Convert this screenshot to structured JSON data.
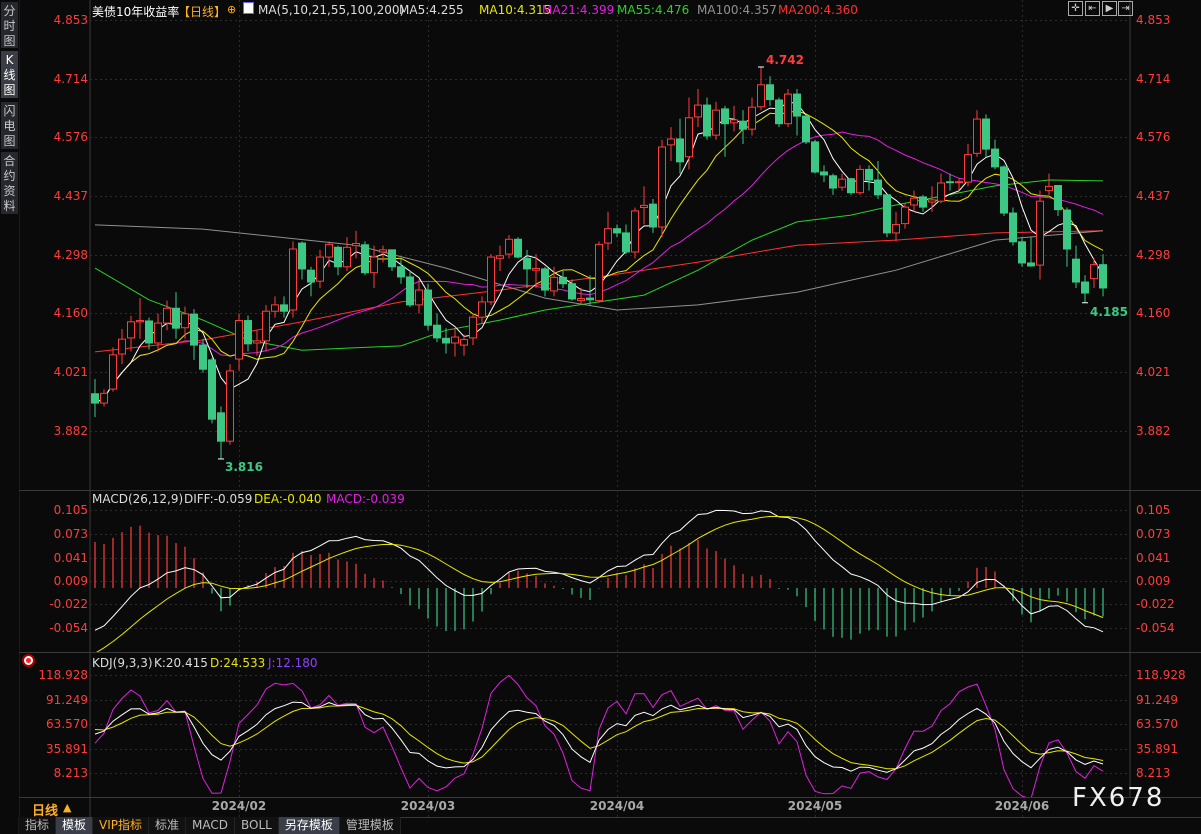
{
  "sidebar": {
    "items": [
      {
        "label": "分时图"
      },
      {
        "label": "K线图",
        "active": true
      },
      {
        "label": "闪电图"
      },
      {
        "label": "合约资料"
      }
    ]
  },
  "header": {
    "title": "美债10年收益率",
    "period": "【日线】",
    "ma_label": "MA(5,10,21,55,100,200)",
    "ma5": "MA5:4.255",
    "ma10": "MA10:4.315",
    "ma21": "MA21:4.399",
    "ma55": "MA55:4.476",
    "ma100": "MA100:4.357",
    "ma200": "MA200:4.360"
  },
  "toolbar": {
    "icons": [
      "crosshair-icon",
      "move-left-icon",
      "play-icon",
      "move-end-icon"
    ]
  },
  "colors": {
    "up": "#ff3c3c",
    "down": "#3cc884",
    "ma5": "#ffffff",
    "ma10": "#e6e600",
    "ma21": "#e020e0",
    "ma55": "#28d028",
    "ma100": "#909090",
    "ma200": "#ff3030",
    "axis_label": "#ff3c3c",
    "period_orange": "#ffb020"
  },
  "price_axis": {
    "ticks": [
      "4.853",
      "4.714",
      "4.576",
      "4.437",
      "4.298",
      "4.160",
      "4.021",
      "3.882"
    ]
  },
  "annotations": {
    "high": "4.742",
    "low": "3.816",
    "last_low": "4.185"
  },
  "macd": {
    "label": "MACD(26,12,9)",
    "diff": "DIFF:-0.059",
    "dea": "DEA:-0.040",
    "macd": "MACD:-0.039",
    "ticks": [
      "0.105",
      "0.073",
      "0.041",
      "0.009",
      "-0.022",
      "-0.054"
    ]
  },
  "kdj": {
    "label": "KDJ(9,3,3)",
    "k": "K:20.415",
    "d": "D:24.533",
    "j": "J:12.180",
    "ticks": [
      "118.928",
      "91.249",
      "63.570",
      "35.891",
      "8.213"
    ]
  },
  "x_axis": {
    "period": "日线",
    "arrow": "▲",
    "ticks": [
      {
        "label": "2024/02",
        "index": 16
      },
      {
        "label": "2024/03",
        "index": 37
      },
      {
        "label": "2024/04",
        "index": 58
      },
      {
        "label": "2024/05",
        "index": 80
      },
      {
        "label": "2024/06",
        "index": 103
      }
    ]
  },
  "bottom_tabs": [
    {
      "label": "指标"
    },
    {
      "label": "模板",
      "hl": true
    },
    {
      "label": "VIP指标",
      "vip": true
    },
    {
      "label": "标准"
    },
    {
      "label": "MACD"
    },
    {
      "label": "BOLL"
    },
    {
      "label": "另存模板",
      "hl": true
    },
    {
      "label": "管理模板"
    }
  ],
  "watermark": "FX678",
  "chart_data": {
    "type": "candlestick",
    "ylim": [
      3.816,
      4.853
    ],
    "ohlc": [
      [
        3.97,
        4.005,
        3.915,
        3.948
      ],
      [
        3.948,
        3.98,
        3.94,
        3.971
      ],
      [
        3.981,
        4.08,
        3.975,
        4.062
      ],
      [
        4.064,
        4.123,
        4.04,
        4.099
      ],
      [
        4.102,
        4.154,
        4.07,
        4.14
      ],
      [
        4.14,
        4.196,
        4.1,
        4.143
      ],
      [
        4.142,
        4.15,
        4.075,
        4.09
      ],
      [
        4.09,
        4.16,
        4.07,
        4.137
      ],
      [
        4.137,
        4.19,
        4.12,
        4.172
      ],
      [
        4.172,
        4.21,
        4.1,
        4.125
      ],
      [
        4.126,
        4.176,
        4.1,
        4.159
      ],
      [
        4.158,
        4.17,
        4.05,
        4.085
      ],
      [
        4.085,
        4.1,
        4.02,
        4.028
      ],
      [
        4.05,
        4.055,
        3.9,
        3.91
      ],
      [
        3.925,
        3.94,
        3.816,
        3.858
      ],
      [
        3.858,
        4.04,
        3.85,
        4.024
      ],
      [
        4.052,
        4.16,
        4.025,
        4.143
      ],
      [
        4.143,
        4.155,
        4.07,
        4.088
      ],
      [
        4.09,
        4.12,
        4.06,
        4.095
      ],
      [
        4.095,
        4.18,
        4.07,
        4.165
      ],
      [
        4.165,
        4.2,
        4.15,
        4.18
      ],
      [
        4.18,
        4.2,
        4.15,
        4.165
      ],
      [
        4.168,
        4.33,
        4.15,
        4.312
      ],
      [
        4.326,
        4.33,
        4.24,
        4.265
      ],
      [
        4.262,
        4.27,
        4.2,
        4.234
      ],
      [
        4.236,
        4.31,
        4.22,
        4.293
      ],
      [
        4.293,
        4.33,
        4.27,
        4.323
      ],
      [
        4.316,
        4.32,
        4.25,
        4.27
      ],
      [
        4.27,
        4.34,
        4.26,
        4.316
      ],
      [
        4.32,
        4.355,
        4.29,
        4.325
      ],
      [
        4.322,
        4.33,
        4.25,
        4.256
      ],
      [
        4.256,
        4.32,
        4.22,
        4.293
      ],
      [
        4.305,
        4.32,
        4.28,
        4.31
      ],
      [
        4.31,
        4.31,
        4.26,
        4.27
      ],
      [
        4.27,
        4.29,
        4.23,
        4.246
      ],
      [
        4.246,
        4.26,
        4.175,
        4.18
      ],
      [
        4.18,
        4.24,
        4.16,
        4.215
      ],
      [
        4.215,
        4.23,
        4.12,
        4.132
      ],
      [
        4.132,
        4.16,
        4.092,
        4.102
      ],
      [
        4.101,
        4.125,
        4.065,
        4.09
      ],
      [
        4.09,
        4.125,
        4.058,
        4.104
      ],
      [
        4.085,
        4.11,
        4.06,
        4.098
      ],
      [
        4.102,
        4.16,
        4.085,
        4.151
      ],
      [
        4.151,
        4.2,
        4.135,
        4.187
      ],
      [
        4.187,
        4.3,
        4.18,
        4.293
      ],
      [
        4.29,
        4.32,
        4.26,
        4.296
      ],
      [
        4.3,
        4.345,
        4.29,
        4.335
      ],
      [
        4.335,
        4.34,
        4.29,
        4.293
      ],
      [
        4.29,
        4.31,
        4.22,
        4.265
      ],
      [
        4.262,
        4.3,
        4.22,
        4.266
      ],
      [
        4.265,
        4.27,
        4.2,
        4.215
      ],
      [
        4.213,
        4.27,
        4.2,
        4.245
      ],
      [
        4.245,
        4.26,
        4.22,
        4.23
      ],
      [
        4.23,
        4.24,
        4.19,
        4.194
      ],
      [
        4.19,
        4.22,
        4.18,
        4.195
      ],
      [
        4.196,
        4.25,
        4.18,
        4.192
      ],
      [
        4.19,
        4.33,
        4.185,
        4.323
      ],
      [
        4.326,
        4.4,
        4.31,
        4.36
      ],
      [
        4.36,
        4.37,
        4.34,
        4.35
      ],
      [
        4.35,
        4.37,
        4.3,
        4.305
      ],
      [
        4.305,
        4.41,
        4.29,
        4.402
      ],
      [
        4.41,
        4.46,
        4.37,
        4.415
      ],
      [
        4.418,
        4.43,
        4.35,
        4.364
      ],
      [
        4.364,
        4.57,
        4.34,
        4.553
      ],
      [
        4.558,
        4.6,
        4.52,
        4.572
      ],
      [
        4.572,
        4.62,
        4.49,
        4.518
      ],
      [
        4.53,
        4.67,
        4.5,
        4.622
      ],
      [
        4.624,
        4.69,
        4.6,
        4.652
      ],
      [
        4.652,
        4.67,
        4.57,
        4.579
      ],
      [
        4.581,
        4.66,
        4.57,
        4.64
      ],
      [
        4.643,
        4.65,
        4.53,
        4.608
      ],
      [
        4.61,
        4.65,
        4.59,
        4.617
      ],
      [
        4.614,
        4.64,
        4.56,
        4.595
      ],
      [
        4.595,
        4.67,
        4.58,
        4.647
      ],
      [
        4.648,
        4.742,
        4.64,
        4.7
      ],
      [
        4.7,
        4.72,
        4.65,
        4.665
      ],
      [
        4.664,
        4.67,
        4.6,
        4.608
      ],
      [
        4.608,
        4.69,
        4.6,
        4.678
      ],
      [
        4.678,
        4.69,
        4.58,
        4.626
      ],
      [
        4.626,
        4.63,
        4.56,
        4.565
      ],
      [
        4.565,
        4.57,
        4.49,
        4.494
      ],
      [
        4.494,
        4.51,
        4.47,
        4.487
      ],
      [
        4.485,
        4.49,
        4.44,
        4.456
      ],
      [
        4.458,
        4.49,
        4.45,
        4.477
      ],
      [
        4.478,
        4.48,
        4.44,
        4.445
      ],
      [
        4.445,
        4.51,
        4.44,
        4.5
      ],
      [
        4.5,
        4.51,
        4.45,
        4.475
      ],
      [
        4.475,
        4.52,
        4.43,
        4.44
      ],
      [
        4.44,
        4.44,
        4.34,
        4.35
      ],
      [
        4.35,
        4.4,
        4.33,
        4.37
      ],
      [
        4.372,
        4.42,
        4.36,
        4.411
      ],
      [
        4.416,
        4.45,
        4.4,
        4.432
      ],
      [
        4.435,
        4.44,
        4.4,
        4.411
      ],
      [
        4.423,
        4.46,
        4.4,
        4.428
      ],
      [
        4.425,
        4.49,
        4.42,
        4.468
      ],
      [
        4.471,
        4.49,
        4.45,
        4.469
      ],
      [
        4.469,
        4.48,
        4.45,
        4.471
      ],
      [
        4.47,
        4.56,
        4.46,
        4.535
      ],
      [
        4.538,
        4.64,
        4.53,
        4.619
      ],
      [
        4.619,
        4.63,
        4.53,
        4.548
      ],
      [
        4.548,
        4.57,
        4.5,
        4.506
      ],
      [
        4.506,
        4.51,
        4.39,
        4.397
      ],
      [
        4.397,
        4.41,
        4.32,
        4.329
      ],
      [
        4.329,
        4.34,
        4.27,
        4.279
      ],
      [
        4.279,
        4.34,
        4.27,
        4.272
      ],
      [
        4.274,
        4.45,
        4.24,
        4.425
      ],
      [
        4.45,
        4.49,
        4.44,
        4.46
      ],
      [
        4.462,
        4.462,
        4.39,
        4.405
      ],
      [
        4.404,
        4.41,
        4.27,
        4.312
      ],
      [
        4.288,
        4.32,
        4.22,
        4.234
      ],
      [
        4.234,
        4.25,
        4.185,
        4.208
      ],
      [
        4.242,
        4.29,
        4.22,
        4.275
      ],
      [
        4.275,
        4.3,
        4.2,
        4.22
      ]
    ],
    "ma55": [
      [
        0,
        4.267
      ],
      [
        6,
        4.192
      ],
      [
        12,
        4.144
      ],
      [
        17,
        4.097
      ],
      [
        23,
        4.073
      ],
      [
        28,
        4.078
      ],
      [
        34,
        4.083
      ],
      [
        39,
        4.12
      ],
      [
        45,
        4.144
      ],
      [
        50,
        4.168
      ],
      [
        56,
        4.187
      ],
      [
        61,
        4.203
      ],
      [
        67,
        4.262
      ],
      [
        73,
        4.333
      ],
      [
        78,
        4.376
      ],
      [
        84,
        4.392
      ],
      [
        89,
        4.416
      ],
      [
        100,
        4.461
      ],
      [
        106,
        4.475
      ],
      [
        112,
        4.473
      ]
    ],
    "ma100": [
      [
        0,
        4.369
      ],
      [
        12,
        4.359
      ],
      [
        29,
        4.321
      ],
      [
        39,
        4.267
      ],
      [
        50,
        4.196
      ],
      [
        58,
        4.168
      ],
      [
        67,
        4.18
      ],
      [
        78,
        4.21
      ],
      [
        89,
        4.262
      ],
      [
        100,
        4.333
      ],
      [
        112,
        4.355
      ]
    ],
    "ma200": [
      [
        0,
        4.069
      ],
      [
        12,
        4.097
      ],
      [
        23,
        4.14
      ],
      [
        34,
        4.187
      ],
      [
        45,
        4.215
      ],
      [
        56,
        4.246
      ],
      [
        67,
        4.281
      ],
      [
        78,
        4.321
      ],
      [
        89,
        4.333
      ],
      [
        100,
        4.35
      ],
      [
        112,
        4.355
      ]
    ]
  }
}
